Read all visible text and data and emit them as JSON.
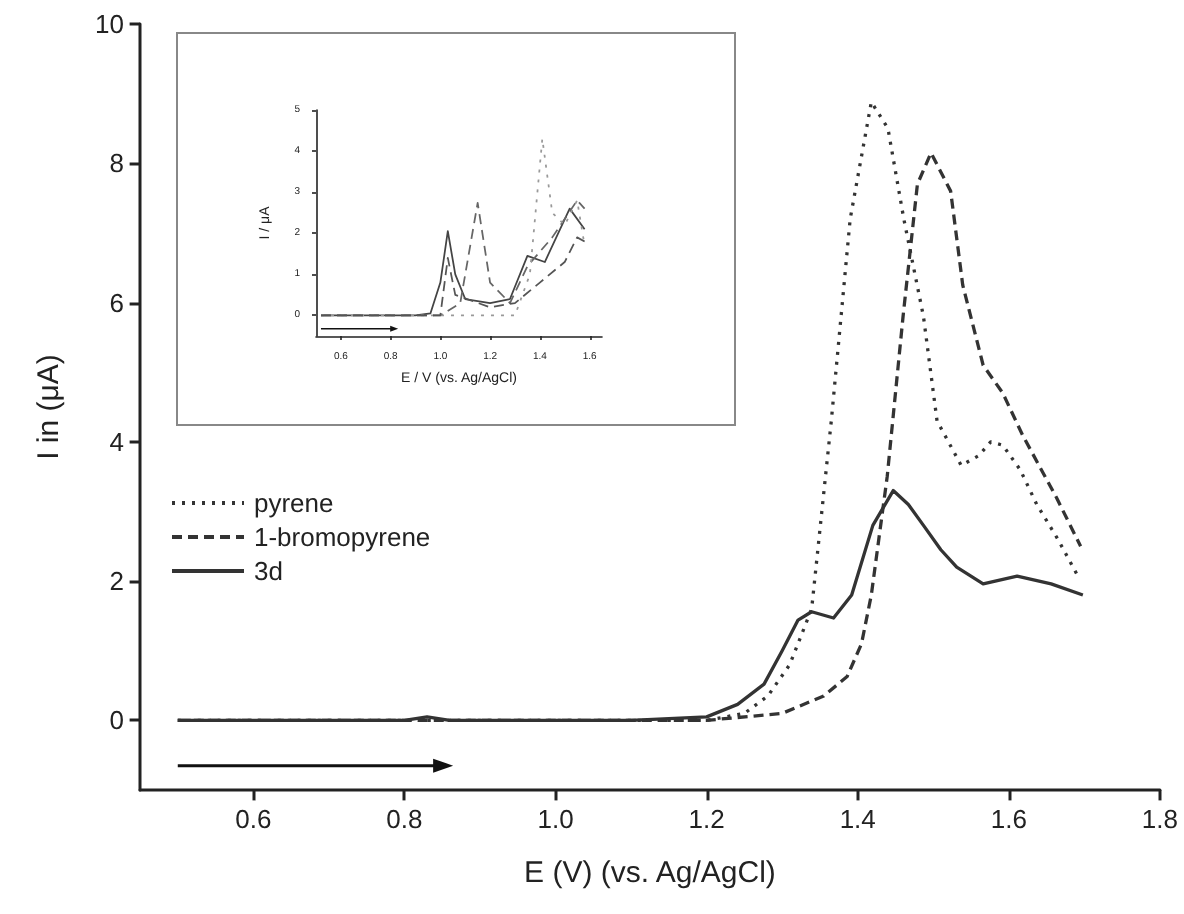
{
  "chart_data": [
    {
      "type": "line",
      "xlabel": "E (V) (vs. Ag/AgCl)",
      "ylabel": "I in (μA)",
      "xlim": [
        0.45,
        1.8
      ],
      "ylim": [
        -1,
        10
      ],
      "xticks": [
        0.6,
        0.8,
        {
          "value": 1,
          "label": "1.0"
        },
        1.2,
        1.4,
        1.6,
        1.8
      ],
      "yticks": [
        0,
        2,
        4,
        6,
        8,
        10
      ],
      "grid": false,
      "legend": "left",
      "marker": "none",
      "series": [
        {
          "name": "pyrene",
          "color": "#333333",
          "line_style": "dotted",
          "x": [
            0.5,
            0.8,
            1.0,
            1.2,
            1.25,
            1.281,
            1.31,
            1.339,
            1.365,
            1.39,
            1.418,
            1.44,
            1.461,
            1.487,
            1.505,
            1.537,
            1.56,
            1.576,
            1.592,
            1.615,
            1.637,
            1.665,
            1.69
          ],
          "values": [
            0,
            0,
            0,
            0,
            0.1,
            0.35,
            0.8,
            1.6,
            4.3,
            7.2,
            8.88,
            8.5,
            7.2,
            5.8,
            4.3,
            3.66,
            3.8,
            4.0,
            3.95,
            3.6,
            3.1,
            2.6,
            2.1
          ]
        },
        {
          "name": "1-bromopyrene",
          "color": "#333333",
          "line_style": "dashed",
          "x": [
            0.5,
            0.8,
            1.0,
            1.2,
            1.3,
            1.355,
            1.386,
            1.405,
            1.418,
            1.439,
            1.46,
            1.479,
            1.497,
            1.523,
            1.539,
            1.566,
            1.592,
            1.618,
            1.663,
            1.695
          ],
          "values": [
            0,
            0,
            0,
            0,
            0.1,
            0.35,
            0.63,
            1.1,
            1.8,
            3.5,
            5.8,
            7.7,
            8.15,
            7.6,
            6.25,
            5.1,
            4.7,
            4.1,
            3.2,
            2.5
          ]
        },
        {
          "name": "3d",
          "color": "#333333",
          "line_style": "solid",
          "x": [
            0.5,
            0.7,
            0.8,
            0.83,
            0.86,
            1.0,
            1.1,
            1.2,
            1.241,
            1.276,
            1.3,
            1.321,
            1.339,
            1.368,
            1.392,
            1.42,
            1.447,
            1.467,
            1.487,
            1.51,
            1.531,
            1.566,
            1.611,
            1.656,
            1.698
          ],
          "values": [
            0,
            0,
            0,
            0.05,
            0,
            0,
            0,
            0.05,
            0.23,
            0.52,
            1.0,
            1.44,
            1.56,
            1.47,
            1.8,
            2.8,
            3.3,
            3.1,
            2.8,
            2.45,
            2.2,
            1.96,
            2.07,
            1.96,
            1.8
          ]
        }
      ]
    },
    {
      "type": "line",
      "xlabel": "E / V (vs. Ag/AgCl)",
      "ylabel": "I / μA",
      "xlim": [
        0.5,
        1.65
      ],
      "ylim": [
        -0.5,
        5
      ],
      "xticks": [
        0.6,
        0.8,
        {
          "value": 1,
          "label": "1.0"
        },
        1.2,
        1.4,
        1.6
      ],
      "yticks": [
        0,
        1,
        2,
        3,
        4,
        5
      ],
      "grid": false,
      "legend": false,
      "marker": "none",
      "series": [
        {
          "color": "#444444",
          "line_style": "solid",
          "x": [
            0.52,
            0.9,
            0.96,
            1.0,
            1.03,
            1.06,
            1.1,
            1.2,
            1.28,
            1.35,
            1.42,
            1.52,
            1.58
          ],
          "values": [
            0,
            0,
            0.05,
            0.8,
            2.05,
            1.0,
            0.4,
            0.3,
            0.4,
            1.45,
            1.3,
            2.6,
            2.1
          ]
        },
        {
          "color": "#666666",
          "line_style": "dashed",
          "x": [
            0.52,
            1.0,
            1.08,
            1.15,
            1.2,
            1.28,
            1.35,
            1.45,
            1.55,
            1.58
          ],
          "values": [
            0,
            0,
            0.3,
            2.74,
            0.8,
            0.3,
            1.2,
            1.9,
            2.8,
            2.6
          ]
        },
        {
          "color": "#999999",
          "line_style": "dotted",
          "x": [
            0.52,
            1.3,
            1.36,
            1.41,
            1.45,
            1.5,
            1.55,
            1.58
          ],
          "values": [
            0,
            0,
            1.0,
            4.3,
            2.5,
            2.2,
            2.8,
            1.7
          ]
        },
        {
          "color": "#555555",
          "line_style": "dashed",
          "x": [
            0.52,
            1.0,
            1.03,
            1.06,
            1.2,
            1.3,
            1.4,
            1.5,
            1.55,
            1.58
          ],
          "values": [
            0,
            0,
            1.4,
            0.5,
            0.2,
            0.3,
            0.8,
            1.3,
            1.9,
            1.8
          ]
        }
      ]
    }
  ]
}
